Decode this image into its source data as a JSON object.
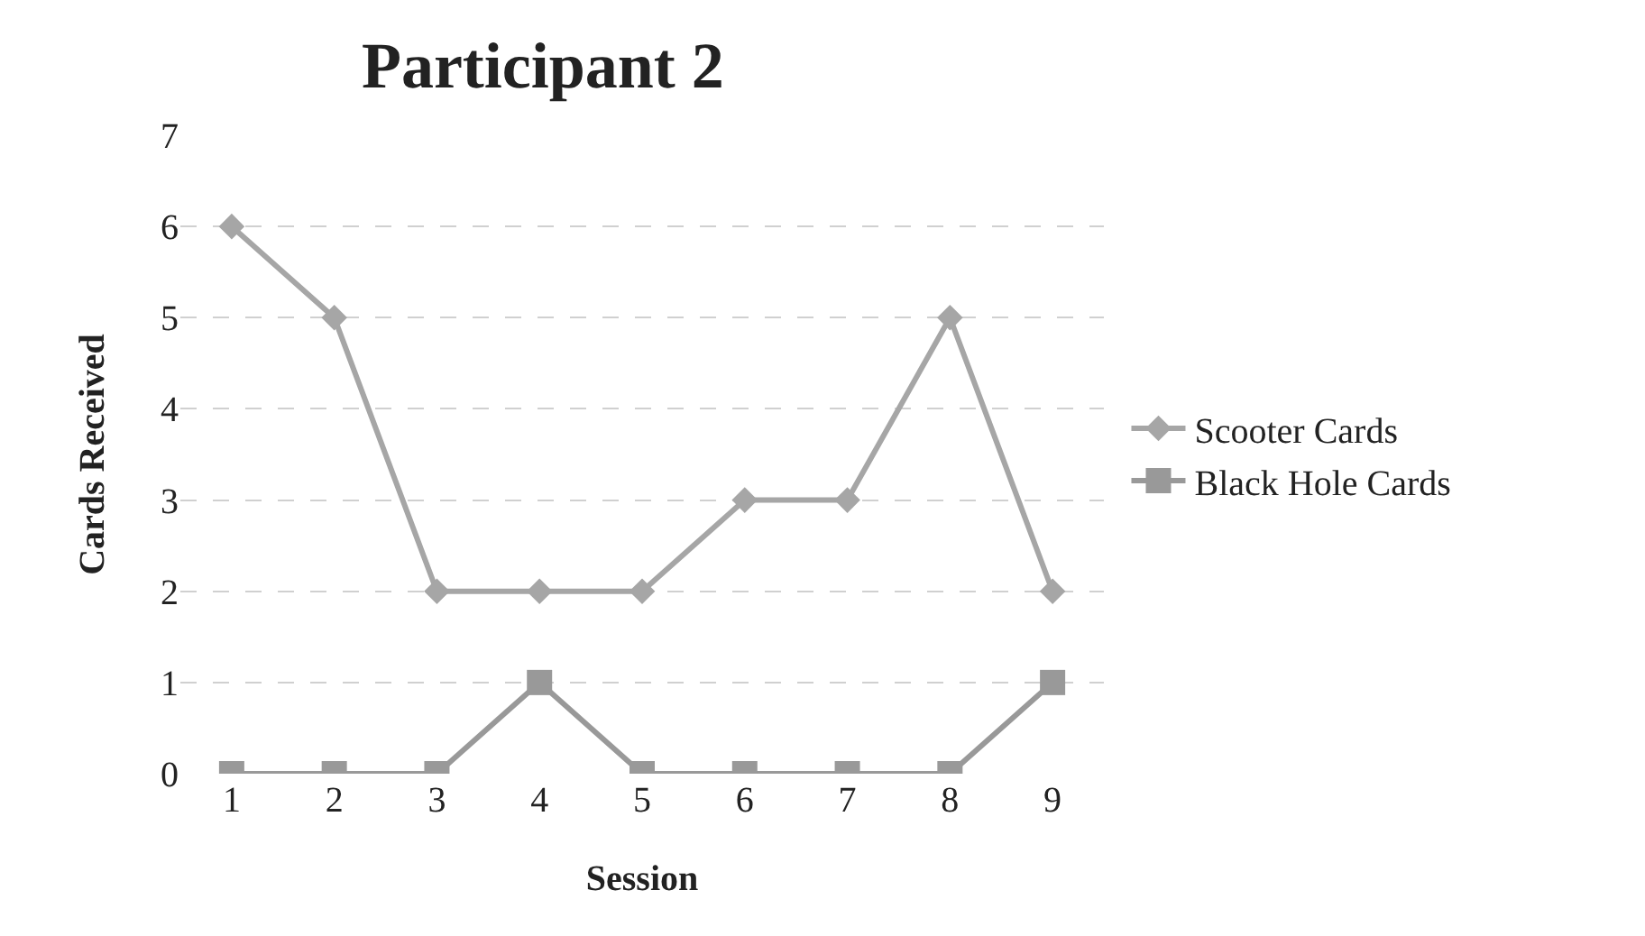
{
  "chart_data": {
    "type": "line",
    "title": "Participant 2",
    "xlabel": "Session",
    "ylabel": "Cards Received",
    "categories": [
      "1",
      "2",
      "3",
      "4",
      "5",
      "6",
      "7",
      "8",
      "9"
    ],
    "series": [
      {
        "name": "Scooter Cards",
        "color": "#a6a6a6",
        "marker": "diamond",
        "values": [
          6,
          5,
          2,
          2,
          2,
          3,
          3,
          5,
          2
        ]
      },
      {
        "name": "Black Hole Cards",
        "color": "#999999",
        "marker": "square",
        "values": [
          0,
          0,
          0,
          1,
          0,
          0,
          0,
          0,
          1
        ]
      }
    ],
    "ylim": [
      0,
      7
    ],
    "yticks": [
      0,
      1,
      2,
      3,
      4,
      5,
      6,
      7
    ],
    "grid": "y",
    "legend": "right"
  }
}
